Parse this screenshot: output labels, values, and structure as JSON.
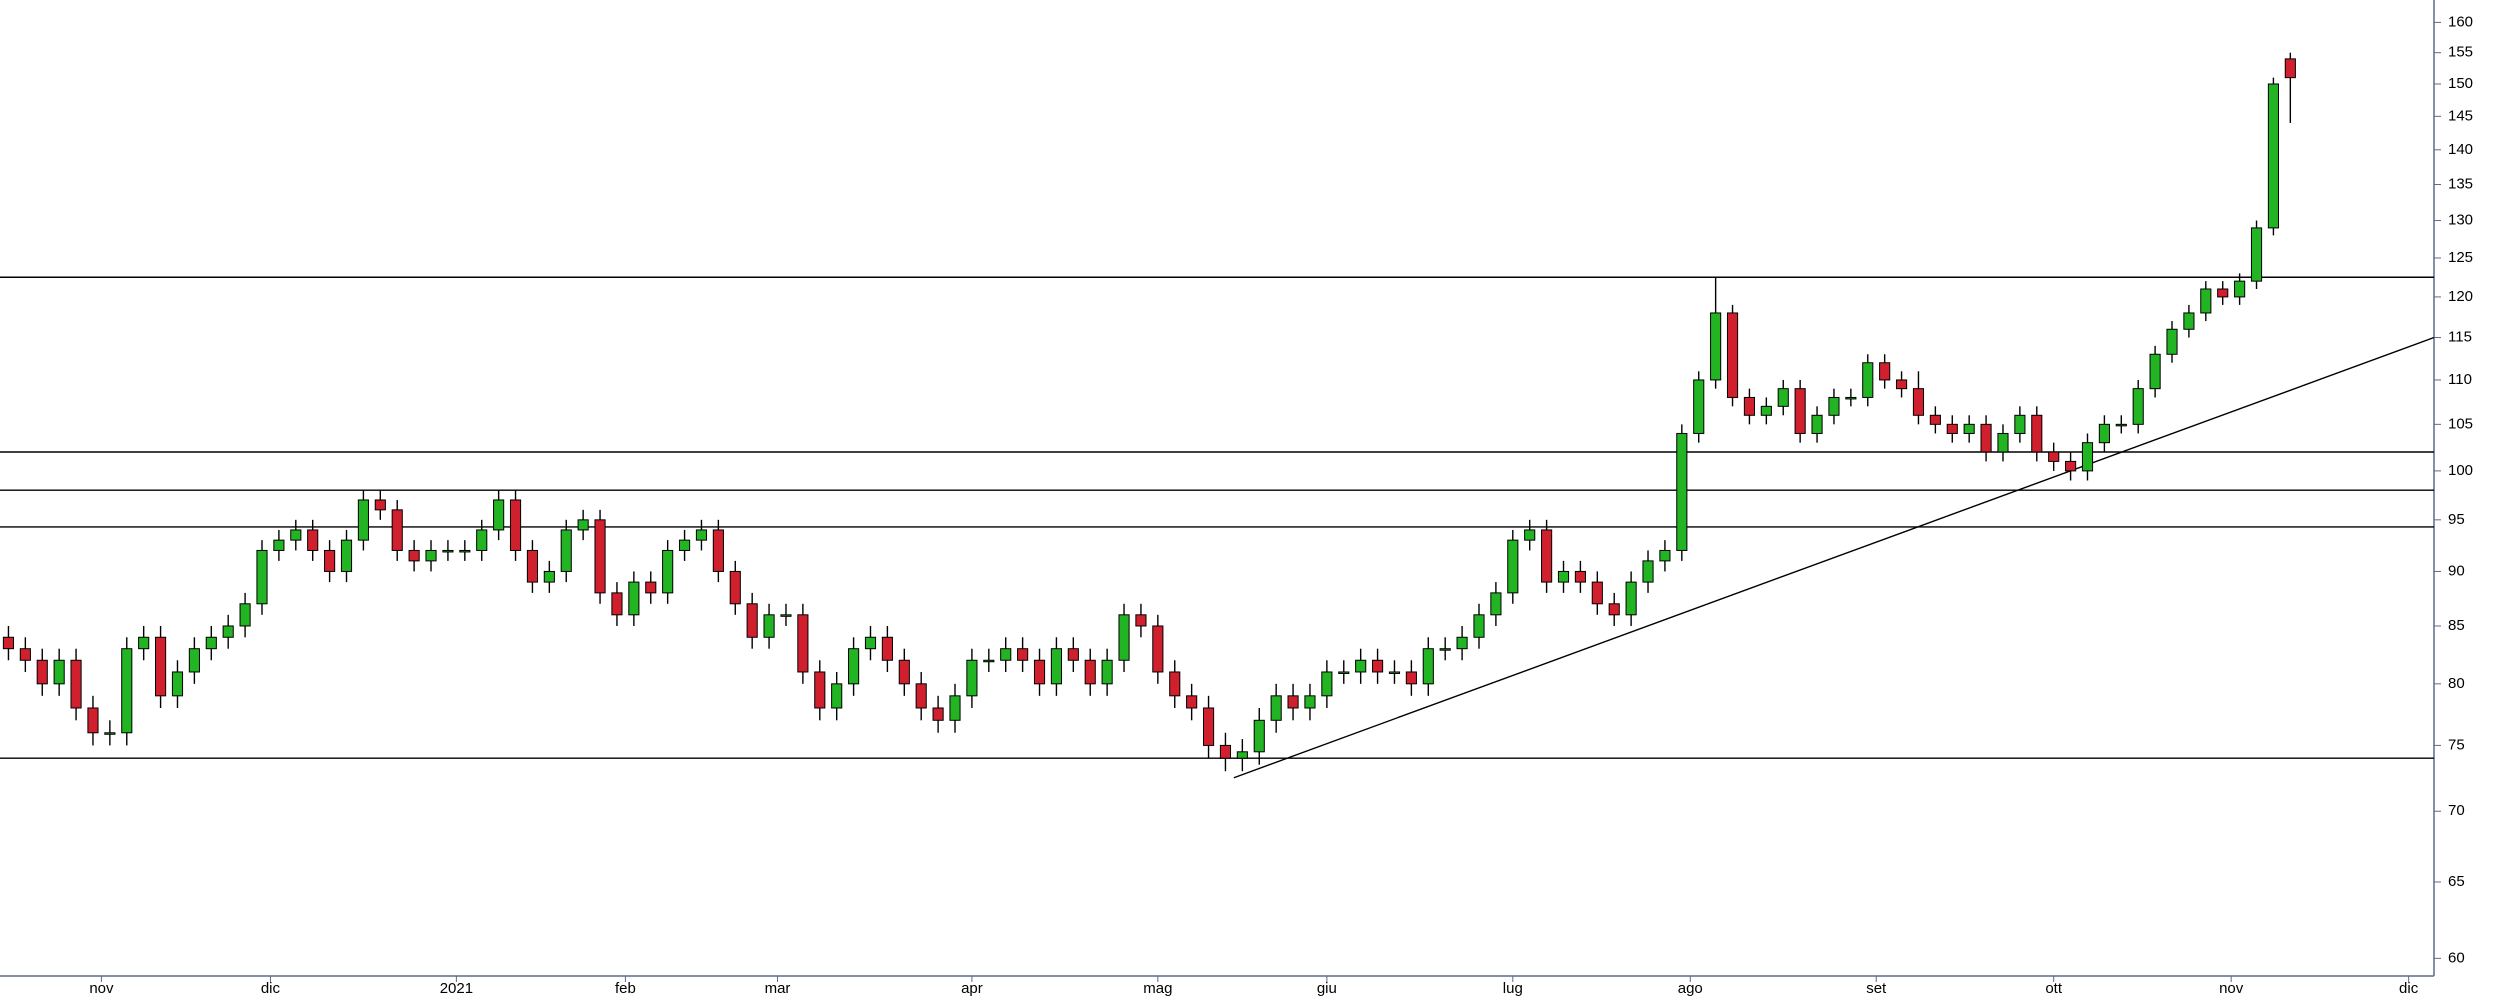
{
  "chart_data": {
    "type": "candlestick",
    "log_scale": true,
    "up_color": "#22b422",
    "down_color": "#d0202e",
    "line_color": "#000000",
    "xlim": [
      0,
      288
    ],
    "ylim": [
      58.9,
      163.8
    ],
    "xticks": [
      {
        "value": 12,
        "label": "nov"
      },
      {
        "value": 32,
        "label": "dic"
      },
      {
        "value": 54,
        "label": "2021"
      },
      {
        "value": 74,
        "label": "feb"
      },
      {
        "value": 92,
        "label": "mar"
      },
      {
        "value": 115,
        "label": "apr"
      },
      {
        "value": 137,
        "label": "mag"
      },
      {
        "value": 157,
        "label": "giu"
      },
      {
        "value": 179,
        "label": "lug"
      },
      {
        "value": 200,
        "label": "ago"
      },
      {
        "value": 222,
        "label": "set"
      },
      {
        "value": 243,
        "label": "ott"
      },
      {
        "value": 264,
        "label": "nov"
      },
      {
        "value": 285,
        "label": "dic"
      }
    ],
    "yticks": [
      60,
      65,
      70,
      75,
      80,
      85,
      90,
      95,
      100,
      105,
      110,
      115,
      120,
      125,
      130,
      135,
      140,
      145,
      150,
      155,
      160
    ],
    "hlines": [
      122.5,
      102,
      98,
      94.3,
      74
    ],
    "trendline": {
      "x": [
        146,
        288
      ],
      "y": [
        72.5,
        115
      ]
    },
    "x": [
      1,
      3,
      5,
      7,
      9,
      11,
      13,
      15,
      17,
      19,
      21,
      23,
      25,
      27,
      29,
      31,
      33,
      35,
      37,
      39,
      41,
      43,
      45,
      47,
      49,
      51,
      53,
      55,
      57,
      59,
      61,
      63,
      65,
      67,
      69,
      71,
      73,
      75,
      77,
      79,
      81,
      83,
      85,
      87,
      89,
      91,
      93,
      95,
      97,
      99,
      101,
      103,
      105,
      107,
      109,
      111,
      113,
      115,
      117,
      119,
      121,
      123,
      125,
      127,
      129,
      131,
      133,
      135,
      137,
      139,
      141,
      143,
      145,
      147,
      149,
      151,
      153,
      155,
      157,
      159,
      161,
      163,
      165,
      167,
      169,
      171,
      173,
      175,
      177,
      179,
      181,
      183,
      185,
      187,
      189,
      191,
      193,
      195,
      197,
      199,
      201,
      203,
      205,
      207,
      209,
      211,
      213,
      215,
      217,
      219,
      221,
      223,
      225,
      227,
      229,
      231,
      233,
      235,
      237,
      239,
      241,
      243,
      245,
      247,
      249,
      251,
      253,
      255,
      257,
      259,
      261,
      263,
      265,
      267,
      269,
      271
    ],
    "open": [
      84,
      83,
      82,
      80,
      82,
      78,
      76,
      76,
      83,
      84,
      79,
      81,
      83,
      84,
      85,
      87,
      92,
      93,
      94,
      92,
      90,
      93,
      97,
      96,
      92,
      91,
      92,
      92,
      92,
      94,
      97,
      92,
      89,
      90,
      94,
      95,
      88,
      86,
      89,
      88,
      92,
      93,
      94,
      90,
      87,
      84,
      86,
      86,
      81,
      78,
      80,
      83,
      84,
      82,
      80,
      78,
      77,
      79,
      82,
      82,
      83,
      82,
      80,
      83,
      82,
      80,
      82,
      86,
      85,
      81,
      79,
      78,
      75,
      74,
      74.5,
      77,
      79,
      78,
      79,
      81,
      81,
      82,
      81,
      81,
      80,
      83,
      83,
      84,
      86,
      88,
      93,
      94,
      89,
      90,
      89,
      87,
      86,
      89,
      91,
      92,
      104,
      110,
      118,
      108,
      106,
      107,
      109,
      104,
      106,
      108,
      108,
      112,
      110,
      109,
      106,
      105,
      104,
      105,
      102,
      104,
      106,
      102,
      101,
      100,
      103,
      105,
      105,
      109,
      113,
      116,
      118,
      121,
      120,
      122,
      129,
      154
    ],
    "high": [
      85,
      84,
      83,
      83,
      83,
      79,
      77,
      84,
      85,
      85,
      82,
      84,
      85,
      86,
      88,
      93,
      94,
      95,
      95,
      93,
      94,
      98,
      98,
      97,
      93,
      93,
      93,
      93,
      95,
      98,
      98,
      93,
      91,
      95,
      96,
      96,
      89,
      90,
      90,
      93,
      94,
      95,
      95,
      91,
      88,
      87,
      87,
      87,
      82,
      81,
      84,
      85,
      85,
      83,
      81,
      79,
      80,
      83,
      83,
      84,
      84,
      83,
      84,
      84,
      83,
      83,
      87,
      87,
      86,
      82,
      80,
      79,
      76,
      75.5,
      78,
      80,
      80,
      80,
      82,
      82,
      83,
      83,
      82,
      82,
      84,
      84,
      85,
      87,
      89,
      94,
      95,
      95,
      91,
      91,
      90,
      88,
      90,
      92,
      93,
      105,
      111,
      122.5,
      119,
      109,
      108,
      110,
      110,
      107,
      109,
      109,
      113,
      113,
      111,
      111,
      107,
      106,
      106,
      106,
      105,
      107,
      107,
      103,
      102,
      104,
      106,
      106,
      110,
      114,
      117,
      119,
      122,
      122,
      123,
      130,
      151,
      155
    ],
    "low": [
      82,
      81,
      79,
      79,
      77,
      75,
      75,
      75,
      82,
      78,
      78,
      80,
      82,
      83,
      84,
      86,
      91,
      92,
      91,
      89,
      89,
      92,
      95,
      91,
      90,
      90,
      91,
      91,
      91,
      93,
      91,
      88,
      88,
      89,
      93,
      87,
      85,
      85,
      87,
      87,
      91,
      92,
      89,
      86,
      83,
      83,
      85,
      80,
      77,
      77,
      79,
      82,
      81,
      79,
      77,
      76,
      76,
      78,
      81,
      81,
      81,
      79,
      79,
      81,
      79,
      79,
      81,
      84,
      80,
      78,
      77,
      74,
      73,
      73,
      73.5,
      76,
      77,
      77,
      78,
      80,
      80,
      80,
      80,
      79,
      79,
      82,
      82,
      83,
      85,
      87,
      92,
      88,
      88,
      88,
      86,
      85,
      85,
      88,
      90,
      91,
      103,
      109,
      107,
      105,
      105,
      106,
      103,
      103,
      105,
      107,
      107,
      109,
      108,
      105,
      104,
      103,
      103,
      101,
      101,
      103,
      101,
      100,
      99,
      99,
      102,
      104,
      104,
      108,
      112,
      115,
      117,
      119,
      119,
      121,
      128,
      144
    ],
    "close": [
      83,
      82,
      80,
      82,
      78,
      76,
      76,
      83,
      84,
      79,
      81,
      83,
      84,
      85,
      87,
      92,
      93,
      94,
      92,
      90,
      93,
      97,
      96,
      92,
      91,
      92,
      92,
      92,
      94,
      97,
      92,
      89,
      90,
      94,
      95,
      88,
      86,
      89,
      88,
      92,
      93,
      94,
      90,
      87,
      84,
      86,
      86,
      81,
      78,
      80,
      83,
      84,
      82,
      80,
      78,
      77,
      79,
      82,
      82,
      83,
      82,
      80,
      83,
      82,
      80,
      82,
      86,
      85,
      81,
      79,
      78,
      75,
      74,
      74.5,
      77,
      79,
      78,
      79,
      81,
      81,
      82,
      81,
      81,
      80,
      83,
      83,
      84,
      86,
      88,
      93,
      94,
      89,
      90,
      89,
      87,
      86,
      89,
      91,
      92,
      104,
      110,
      118,
      108,
      106,
      107,
      109,
      104,
      106,
      108,
      108,
      112,
      110,
      109,
      106,
      105,
      104,
      105,
      102,
      104,
      106,
      102,
      101,
      100,
      103,
      105,
      105,
      109,
      113,
      116,
      118,
      121,
      120,
      122,
      129,
      150,
      151
    ]
  }
}
